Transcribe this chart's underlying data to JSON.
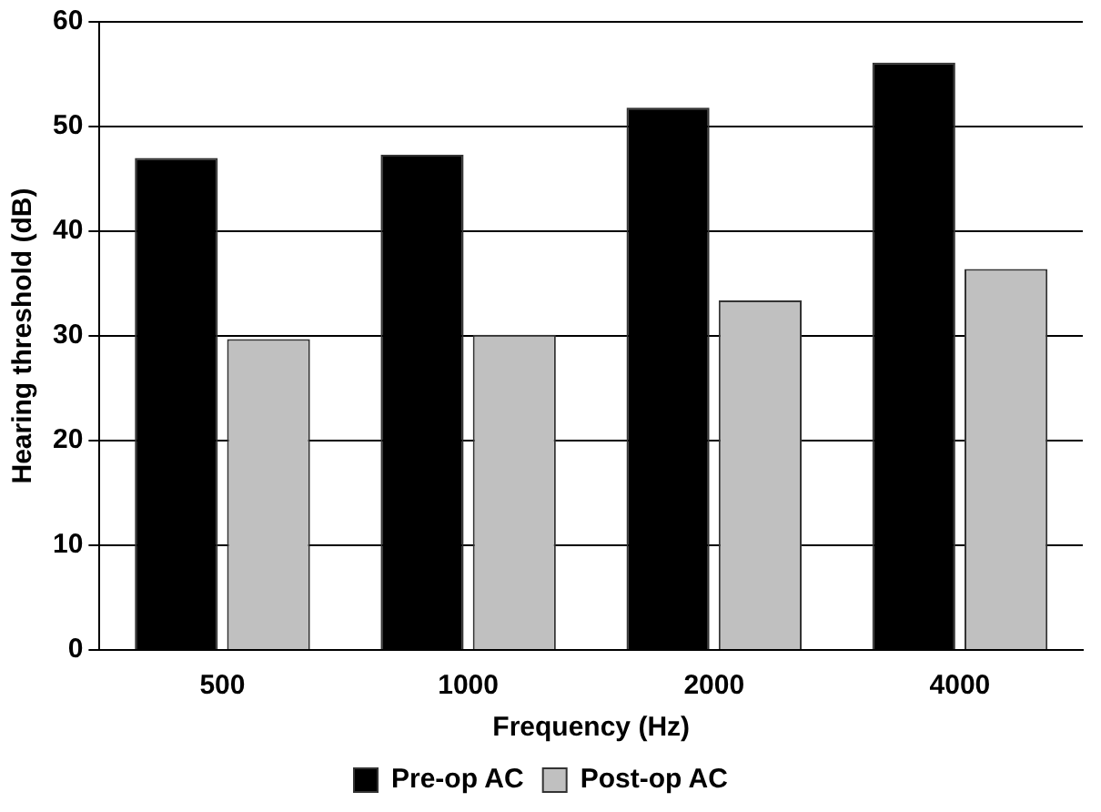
{
  "chart_data": {
    "type": "bar",
    "xlabel": "Frequency (Hz)",
    "ylabel": "Hearing threshold (dB)",
    "categories": [
      "500",
      "1000",
      "2000",
      "4000"
    ],
    "series": [
      {
        "name": "Pre-op AC",
        "color": "#000000",
        "values": [
          47,
          47.3,
          51.8,
          56.1
        ]
      },
      {
        "name": "Post-op AC",
        "color": "#c0c0c0",
        "values": [
          29.7,
          30.1,
          33.4,
          36.4
        ]
      }
    ],
    "ylim": [
      0,
      60
    ],
    "yticks": [
      0,
      10,
      20,
      30,
      40,
      50,
      60
    ],
    "grid": "y",
    "legend": "bottom"
  }
}
